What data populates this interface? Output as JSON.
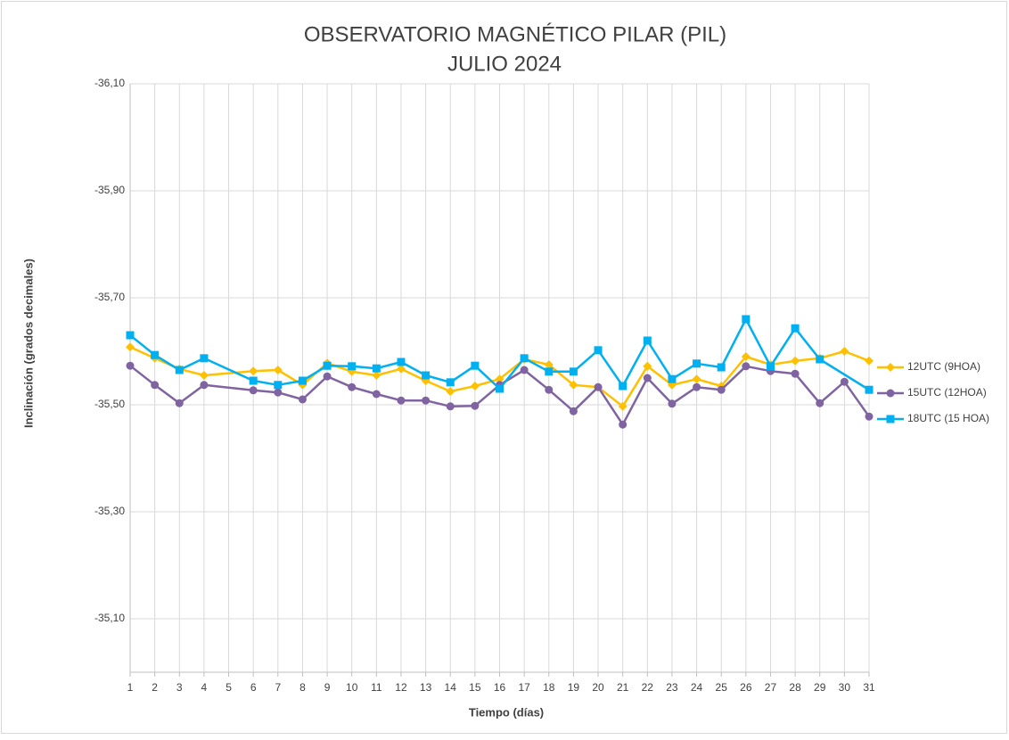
{
  "chart_data": {
    "type": "line",
    "title": [
      "OBSERVATORIO MAGNÉTICO PILAR (PIL)",
      "JULIO 2024"
    ],
    "x_label": "Tiempo (días)",
    "y_label": "Inclinación (grados decimales)",
    "xlim": [
      1,
      31
    ],
    "xticks": [
      1,
      2,
      3,
      4,
      5,
      6,
      7,
      8,
      9,
      10,
      11,
      12,
      13,
      14,
      15,
      16,
      17,
      18,
      19,
      20,
      21,
      22,
      23,
      24,
      25,
      26,
      27,
      28,
      29,
      30,
      31
    ],
    "ylim": [
      -35.0,
      -36.1
    ],
    "yticks": [
      {
        "value": -36.1,
        "label": "-36,10"
      },
      {
        "value": -35.9,
        "label": "-35,90"
      },
      {
        "value": -35.7,
        "label": "-35,70"
      },
      {
        "value": -35.5,
        "label": "-35,50"
      },
      {
        "value": -35.3,
        "label": "-35,30"
      },
      {
        "value": -35.1,
        "label": "-35,10"
      }
    ],
    "grid": true,
    "legend": "right",
    "series": [
      {
        "name": "12UTC (9HOA)",
        "color": "#ffc000",
        "marker": "diamond",
        "x": [
          1,
          2,
          3,
          4,
          6,
          7,
          8,
          9,
          10,
          11,
          12,
          13,
          14,
          15,
          16,
          17,
          18,
          19,
          20,
          21,
          22,
          23,
          24,
          25,
          26,
          27,
          28,
          29,
          30,
          31
        ],
        "values": [
          -35.608,
          -35.587,
          -35.567,
          -35.555,
          -35.563,
          -35.565,
          -35.537,
          -35.578,
          -35.562,
          -35.555,
          -35.567,
          -35.545,
          -35.525,
          -35.535,
          -35.548,
          -35.585,
          -35.575,
          -35.537,
          -35.533,
          -35.497,
          -35.572,
          -35.537,
          -35.548,
          -35.535,
          -35.59,
          -35.575,
          -35.582,
          -35.587,
          -35.6,
          -35.582
        ]
      },
      {
        "name": "15UTC (12HOA)",
        "color": "#8064a2",
        "marker": "circle",
        "x": [
          1,
          2,
          3,
          4,
          6,
          7,
          8,
          9,
          10,
          11,
          12,
          13,
          14,
          15,
          16,
          17,
          18,
          19,
          20,
          21,
          22,
          23,
          24,
          25,
          26,
          27,
          28,
          29,
          30,
          31
        ],
        "values": [
          -35.573,
          -35.537,
          -35.503,
          -35.537,
          -35.527,
          -35.523,
          -35.51,
          -35.553,
          -35.533,
          -35.52,
          -35.508,
          -35.508,
          -35.497,
          -35.498,
          -35.537,
          -35.565,
          -35.528,
          -35.488,
          -35.533,
          -35.463,
          -35.55,
          -35.502,
          -35.533,
          -35.528,
          -35.572,
          -35.563,
          -35.558,
          -35.503,
          -35.543,
          -35.478
        ]
      },
      {
        "name": "18UTC (15 HOA)",
        "color": "#00b0f0",
        "marker": "square",
        "x": [
          1,
          2,
          3,
          4,
          6,
          7,
          8,
          9,
          10,
          11,
          12,
          13,
          14,
          15,
          16,
          17,
          18,
          19,
          20,
          21,
          22,
          23,
          24,
          25,
          26,
          27,
          28,
          29,
          31
        ],
        "values": [
          -35.63,
          -35.593,
          -35.565,
          -35.587,
          -35.545,
          -35.537,
          -35.545,
          -35.573,
          -35.572,
          -35.568,
          -35.58,
          -35.555,
          -35.542,
          -35.573,
          -35.53,
          -35.587,
          -35.562,
          -35.562,
          -35.602,
          -35.535,
          -35.62,
          -35.548,
          -35.577,
          -35.57,
          -35.66,
          -35.572,
          -35.643,
          -35.585,
          -35.528
        ]
      }
    ]
  }
}
